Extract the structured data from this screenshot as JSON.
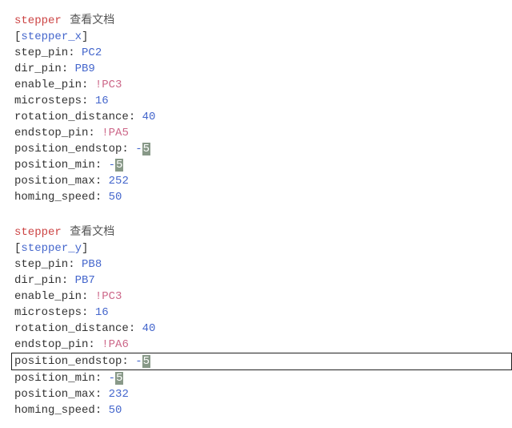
{
  "sections": [
    {
      "label_prefix": "stepper",
      "label_suffix": "查看文档",
      "header": "stepper_x",
      "rows": [
        {
          "key": "step_pin",
          "val_type": "pin",
          "val": "PC2"
        },
        {
          "key": "dir_pin",
          "val_type": "pin",
          "val": "PB9"
        },
        {
          "key": "enable_pin",
          "val_type": "bangpin",
          "val": "!PC3"
        },
        {
          "key": "microsteps",
          "val_type": "num",
          "val": "16"
        },
        {
          "key": "rotation_distance",
          "val_type": "num",
          "val": "40"
        },
        {
          "key": "endstop_pin",
          "val_type": "bangpin",
          "val": "!PA5"
        },
        {
          "key": "position_endstop",
          "val_type": "hl_neg",
          "pre": "-",
          "hl": "5"
        },
        {
          "key": "position_min",
          "val_type": "hl_neg",
          "pre": "-",
          "hl": "5"
        },
        {
          "key": "position_max",
          "val_type": "num",
          "val": "252"
        },
        {
          "key": "homing_speed",
          "val_type": "num",
          "val": "50"
        }
      ]
    },
    {
      "label_prefix": "stepper",
      "label_suffix": "查看文档",
      "header": "stepper_y",
      "rows": [
        {
          "key": "step_pin",
          "val_type": "pin",
          "val": "PB8"
        },
        {
          "key": "dir_pin",
          "val_type": "pin",
          "val": "PB7"
        },
        {
          "key": "enable_pin",
          "val_type": "bangpin",
          "val": "!PC3"
        },
        {
          "key": "microsteps",
          "val_type": "num",
          "val": "16"
        },
        {
          "key": "rotation_distance",
          "val_type": "num",
          "val": "40"
        },
        {
          "key": "endstop_pin",
          "val_type": "bangpin",
          "val": "!PA6"
        },
        {
          "key": "position_endstop",
          "val_type": "hl_neg",
          "pre": "-",
          "hl": "5",
          "boxed": true
        },
        {
          "key": "position_min",
          "val_type": "hl_neg",
          "pre": "-",
          "hl": "5"
        },
        {
          "key": "position_max",
          "val_type": "num",
          "val": "232"
        },
        {
          "key": "homing_speed",
          "val_type": "num",
          "val": "50"
        }
      ]
    }
  ],
  "colors": {
    "label_red": "#cc4444",
    "cjk_gray": "#555555",
    "blue": "#4466cc",
    "pink": "#cc6688",
    "hl_bg": "#889988",
    "text": "#333333",
    "bg": "#ffffff",
    "border": "#222222"
  }
}
